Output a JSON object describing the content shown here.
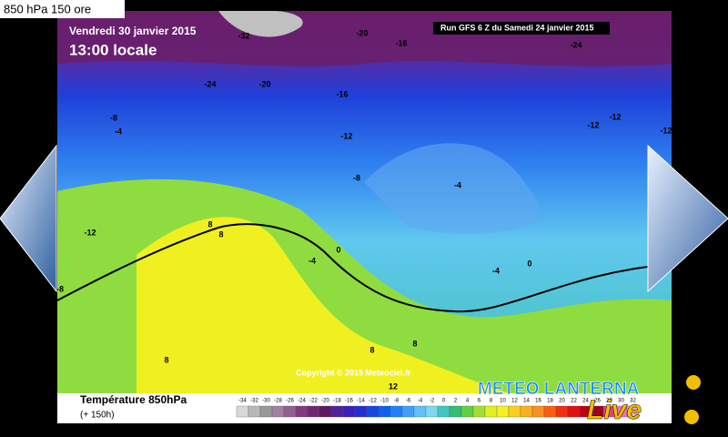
{
  "header": {
    "label": "850 hPa 150 ore"
  },
  "map": {
    "valid_time": "Vendredi 30 janvier 2015",
    "local_time": "13:00 locale",
    "run": "Run GFS 6 Z du Samedi 24 janvier 2015",
    "copyright": "Copyright © 2015 Meteociel.fr",
    "contour_labels": [
      -32,
      -20,
      -16,
      -24,
      -24,
      -20,
      -16,
      -12,
      -12,
      -12,
      -12,
      -8,
      -4,
      -8,
      -4,
      -12,
      -4,
      0,
      8,
      8,
      -8,
      8,
      8,
      8,
      12,
      0,
      -4
    ]
  },
  "legend": {
    "title": "Température 850hPa",
    "subtitle": "(+ 150h)",
    "values": [
      -34,
      -32,
      -30,
      -28,
      -26,
      -24,
      -22,
      -20,
      -18,
      -16,
      -14,
      -12,
      -10,
      -8,
      -6,
      -4,
      -2,
      0,
      2,
      4,
      6,
      8,
      10,
      12,
      14,
      16,
      18,
      20,
      22,
      24,
      26,
      28,
      30,
      32
    ],
    "colors": [
      "#d8d8d8",
      "#b8b8b8",
      "#989898",
      "#a080a0",
      "#906090",
      "#803a80",
      "#702870",
      "#601860",
      "#5020a0",
      "#3a20c0",
      "#2030d0",
      "#1848e0",
      "#1060f0",
      "#2080f8",
      "#40a0f8",
      "#60c0f8",
      "#80d8f0",
      "#40c8c0",
      "#30c070",
      "#60d040",
      "#a0e030",
      "#e0f020",
      "#f8f020",
      "#f8d020",
      "#f8b020",
      "#f89020",
      "#f86010",
      "#f03010",
      "#e01010",
      "#c00010",
      "#a00020",
      "#e04080",
      "#f070b0",
      "#f8a0d0"
    ]
  },
  "logo": {
    "line1": "METEO LANTERNA",
    "line2": "Live"
  }
}
